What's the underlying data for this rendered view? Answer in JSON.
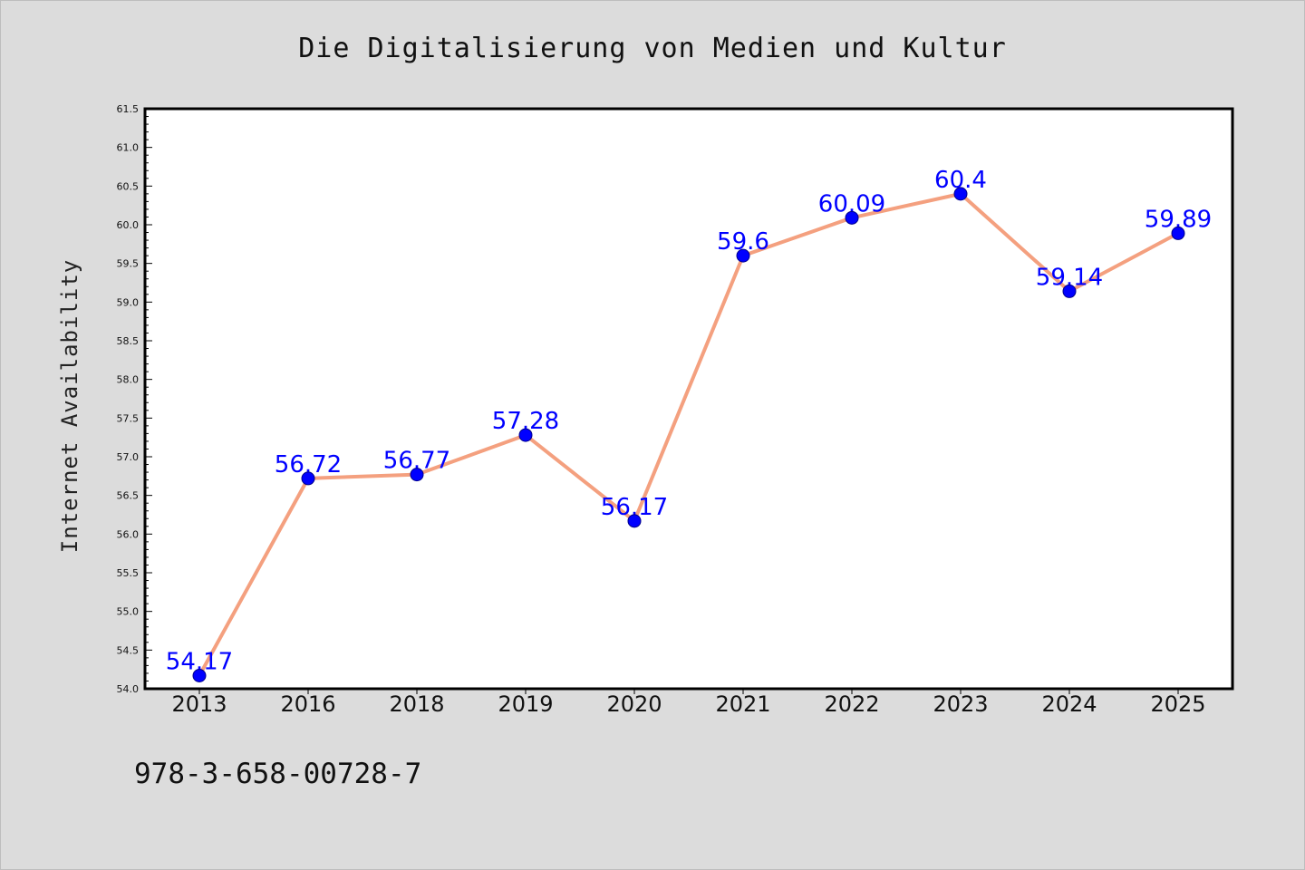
{
  "chart_data": {
    "type": "line",
    "title": "Die Digitalisierung von Medien und Kultur",
    "xlabel": "",
    "ylabel": "Internet Availability",
    "categories": [
      "2013",
      "2016",
      "2018",
      "2019",
      "2020",
      "2021",
      "2022",
      "2023",
      "2024",
      "2025"
    ],
    "values": [
      54.17,
      56.72,
      56.77,
      57.28,
      56.17,
      59.6,
      60.09,
      60.4,
      59.14,
      59.89
    ],
    "data_labels": [
      "54.17",
      "56.72",
      "56.77",
      "57.28",
      "56.17",
      "59.6",
      "60.09",
      "60.4",
      "59.14",
      "59.89"
    ],
    "ylim": [
      54.0,
      61.5
    ],
    "yticks": [
      "54.0",
      "54.5",
      "55.0",
      "55.5",
      "56.0",
      "56.5",
      "57.0",
      "57.5",
      "58.0",
      "58.5",
      "59.0",
      "59.5",
      "60.0",
      "60.5",
      "61.0",
      "61.5"
    ],
    "grid": false,
    "legend": "none",
    "line_color": "#f4a07f",
    "marker_color": "#0000ff",
    "label_color": "#0000ff"
  },
  "footnote": "978-3-658-00728-7"
}
